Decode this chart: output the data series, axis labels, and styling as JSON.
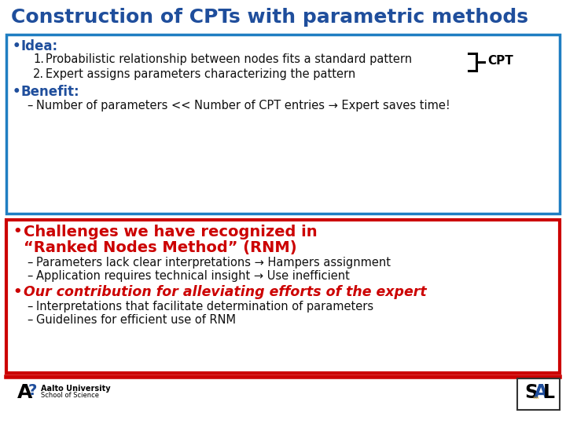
{
  "title": "Construction of CPTs with parametric methods",
  "title_color": "#1F4E9C",
  "title_fontsize": 18,
  "bg_color": "#FFFFFF",
  "blue_box": {
    "bullet1_label": "Idea:",
    "item1": "Probabilistic relationship between nodes fits a standard pattern",
    "item2": "Expert assigns parameters characterizing the pattern",
    "bullet2_label": "Benefit:",
    "benefit_item": "Number of parameters << Number of CPT entries → Expert saves time!",
    "border_color": "#1F7EC2",
    "label_color": "#1F4E9C",
    "text_color": "#111111"
  },
  "red_box": {
    "challenge_title_line1": "Challenges we have recognized in",
    "challenge_title_line2": "“Ranked Nodes Method” (RNM)",
    "challenge_item1": "Parameters lack clear interpretations → Hampers assignment",
    "challenge_item2": "Application requires technical insight → Use inefficient",
    "contribution_title": "Our contribution for alleviating efforts of the expert",
    "contrib_item1": "Interpretations that facilitate determination of parameters",
    "contrib_item2": "Guidelines for efficient use of RNM",
    "border_color": "#CC0000",
    "title_color": "#CC0000",
    "text_color": "#111111"
  },
  "footer_line_color": "#CC0000",
  "aalto_text1": "Aalto University",
  "aalto_text2": "School of Science"
}
